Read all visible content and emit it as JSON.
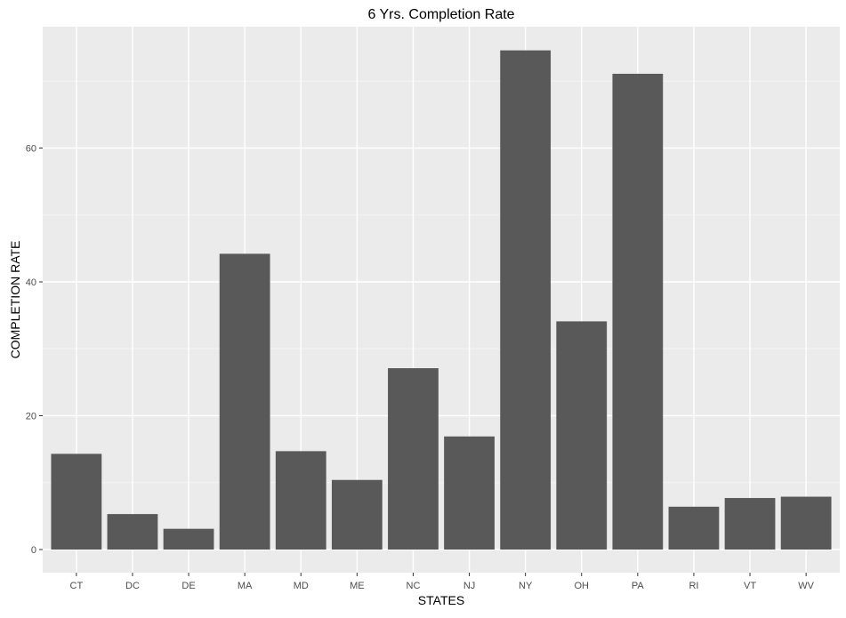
{
  "chart_data": {
    "type": "bar",
    "title": "6 Yrs. Completion Rate",
    "xlabel": "STATES",
    "ylabel": "COMPLETION RATE",
    "categories": [
      "CT",
      "DC",
      "DE",
      "MA",
      "MD",
      "ME",
      "NC",
      "NJ",
      "NY",
      "OH",
      "PA",
      "RI",
      "VT",
      "WV"
    ],
    "values": [
      14.3,
      5.3,
      3.1,
      44.2,
      14.7,
      10.4,
      27.1,
      16.9,
      74.6,
      34.1,
      71.1,
      6.4,
      7.7,
      7.9
    ],
    "ylim": [
      0,
      78.3
    ],
    "yticks": [
      0,
      20,
      40,
      60
    ],
    "grid": true,
    "colors": {
      "bar": "#595959",
      "panel": "#ebebeb",
      "grid_major": "#ffffff",
      "grid_minor": "#f5f5f5"
    }
  }
}
